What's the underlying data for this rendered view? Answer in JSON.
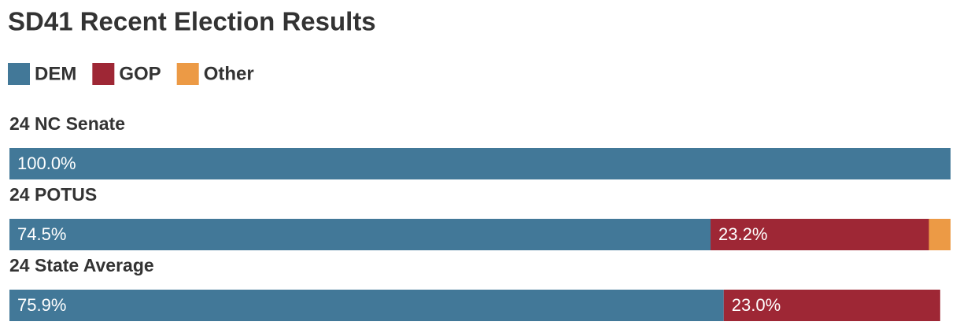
{
  "chart_data": {
    "type": "stacked-bar",
    "orientation": "horizontal",
    "title": "SD41 Recent Election Results",
    "categories": [
      "24 NC Senate",
      "24 POTUS",
      "24 State Average"
    ],
    "xlim": [
      0,
      100
    ],
    "series": [
      {
        "name": "DEM",
        "color": "#427898",
        "values": [
          100,
          74.5,
          75.9
        ],
        "value_labels": [
          "100.0%",
          "74.5%",
          "75.9%"
        ]
      },
      {
        "name": "GOP",
        "color": "#9e2735",
        "values": [
          null,
          23.2,
          23.0
        ],
        "value_labels": [
          null,
          "23.2%",
          "23.0%"
        ]
      },
      {
        "name": "Other",
        "color": "#ec9a45",
        "values": [
          null,
          2.3,
          null
        ]
      }
    ]
  }
}
